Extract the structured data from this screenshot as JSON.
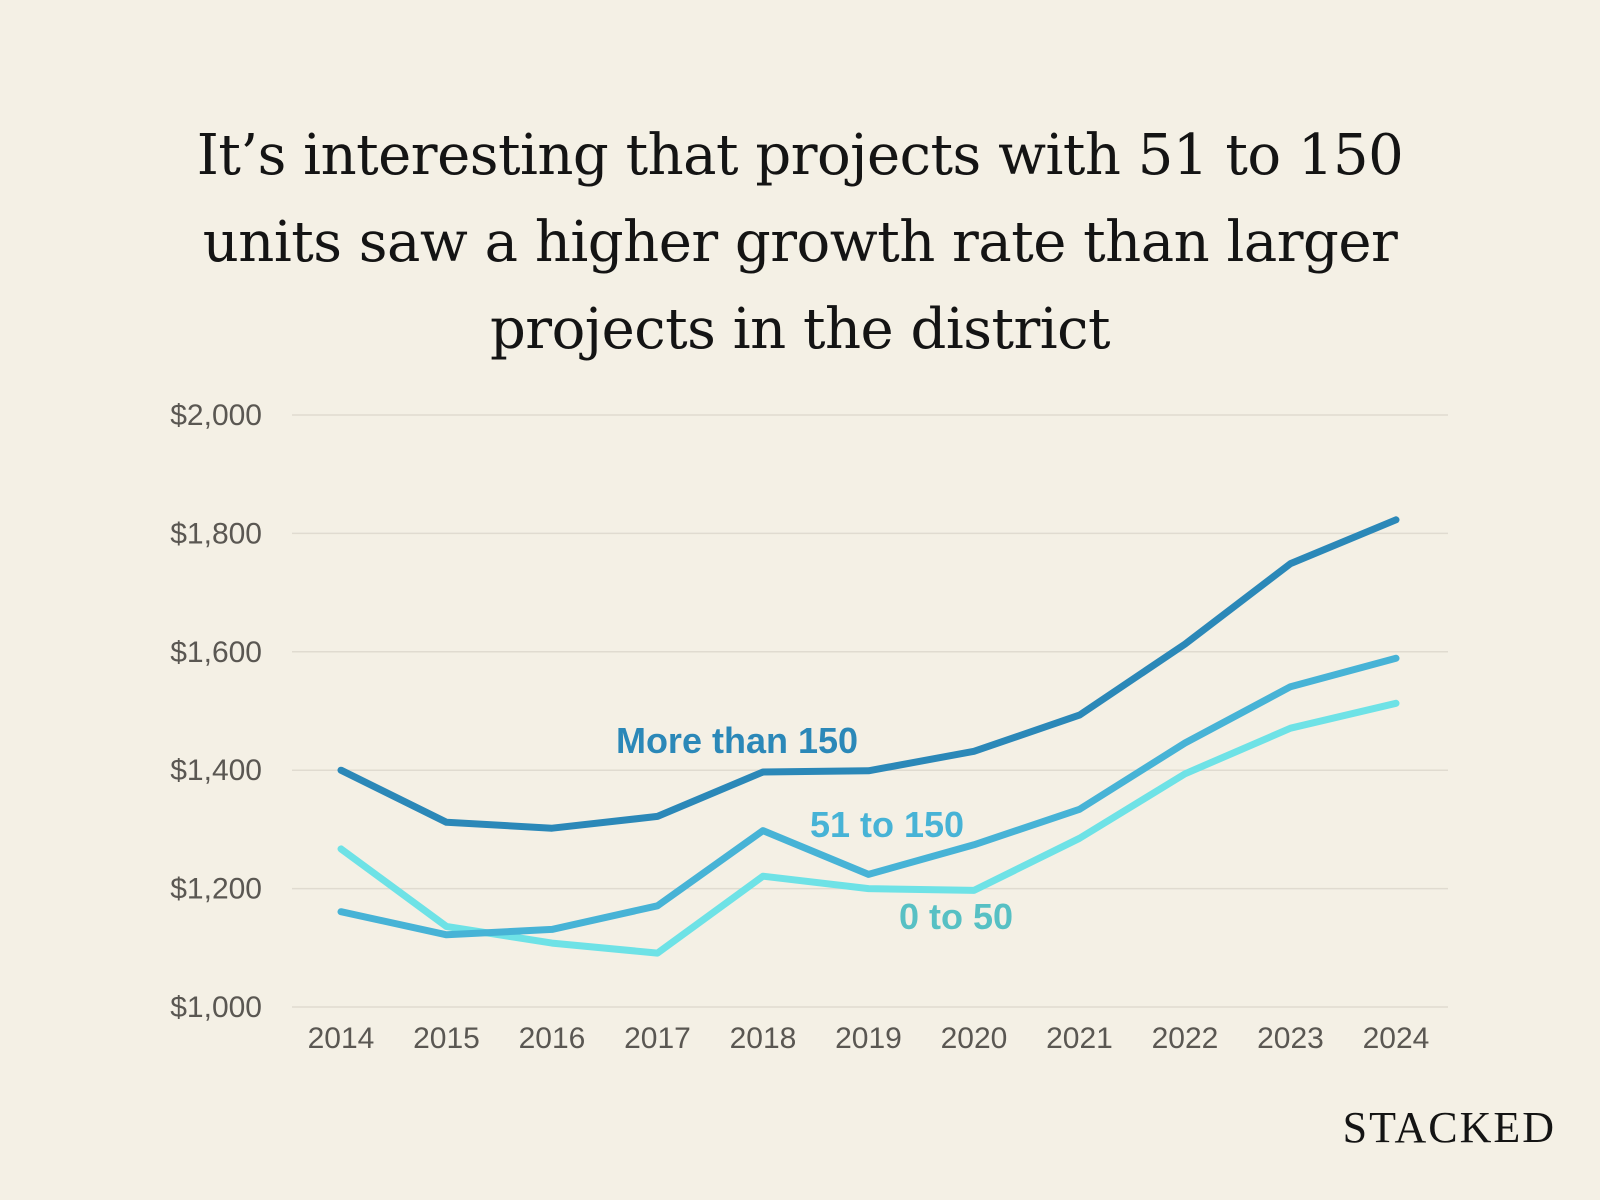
{
  "chart_data": {
    "type": "line",
    "title": "It’s interesting that projects with 51 to 150 units saw a higher growth rate than larger projects in the district",
    "xlabel": "",
    "ylabel": "",
    "categories": [
      "2014",
      "2015",
      "2016",
      "2017",
      "2018",
      "2019",
      "2020",
      "2021",
      "2022",
      "2023",
      "2024"
    ],
    "yticks": [
      1000,
      1200,
      1400,
      1600,
      1800,
      2000
    ],
    "ytick_labels": [
      "$1,000",
      "$1,200",
      "$1,400",
      "$1,600",
      "$1,800",
      "$2,000"
    ],
    "ylim": [
      1000,
      2000
    ],
    "grid": true,
    "series": [
      {
        "name": "More than 150",
        "color": "#2b88b8",
        "values": [
          1400,
          1312,
          1302,
          1322,
          1397,
          1399,
          1432,
          1493,
          1613,
          1749,
          1823
        ]
      },
      {
        "name": "51 to 150",
        "color": "#47b3d6",
        "values": [
          1161,
          1122,
          1131,
          1171,
          1298,
          1224,
          1274,
          1334,
          1446,
          1541,
          1589
        ]
      },
      {
        "name": "0 to 50",
        "color": "#6ee2e6",
        "values": [
          1267,
          1136,
          1108,
          1091,
          1221,
          1200,
          1197,
          1285,
          1394,
          1471,
          1513
        ]
      }
    ],
    "label_colors": [
      "#2b88b8",
      "#47b3d6",
      "#57c0c4"
    ]
  },
  "brand": "STACKED"
}
